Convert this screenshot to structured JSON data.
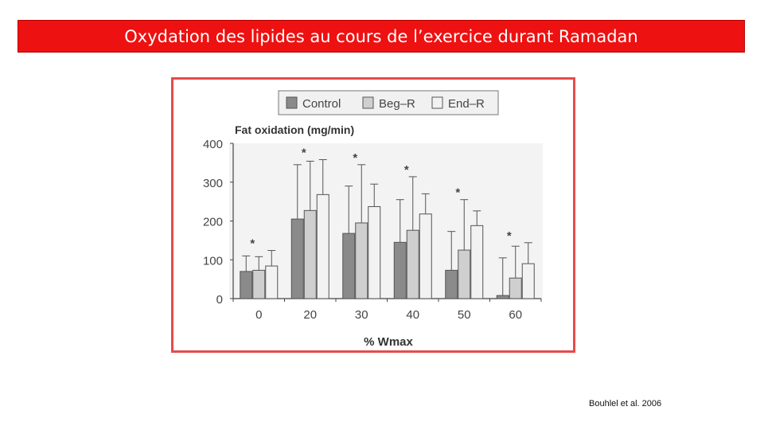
{
  "header": {
    "title": "Oxydation des lipides au cours de l’exercice durant Ramadan"
  },
  "citation": "Bouhlel et al. 2006",
  "colors": {
    "title_background": "#ee1111",
    "frame": "#e84a4a",
    "control": "#8a8a8a",
    "beg_r": "#cfcfcf",
    "end_r": "#f2f2f2"
  },
  "chart_data": {
    "type": "bar",
    "ylabel": "Fat oxidation (mg/min)",
    "xlabel": "% Wmax",
    "categories": [
      "0",
      "20",
      "30",
      "40",
      "50",
      "60"
    ],
    "ylim": [
      0,
      400
    ],
    "yticks": [
      0,
      100,
      200,
      300,
      400
    ],
    "legend_position": "top",
    "grid": false,
    "series": [
      {
        "name": "Control",
        "color": "#8a8a8a",
        "values": [
          70,
          205,
          168,
          145,
          73,
          8
        ],
        "errors": [
          40,
          140,
          122,
          110,
          100,
          97
        ]
      },
      {
        "name": "Beg–R",
        "color": "#cfcfcf",
        "values": [
          73,
          227,
          195,
          176,
          125,
          53
        ],
        "errors": [
          35,
          127,
          150,
          138,
          130,
          82
        ]
      },
      {
        "name": "End–R",
        "color": "#f2f2f2",
        "values": [
          84,
          268,
          237,
          218,
          188,
          90
        ],
        "errors": [
          40,
          90,
          58,
          52,
          38,
          54
        ]
      }
    ],
    "annotations": [
      {
        "category": "0",
        "text": "*"
      },
      {
        "category": "20",
        "text": "*"
      },
      {
        "category": "30",
        "text": "*"
      },
      {
        "category": "40",
        "text": "*"
      },
      {
        "category": "50",
        "text": "*"
      },
      {
        "category": "60",
        "text": "*"
      }
    ]
  }
}
